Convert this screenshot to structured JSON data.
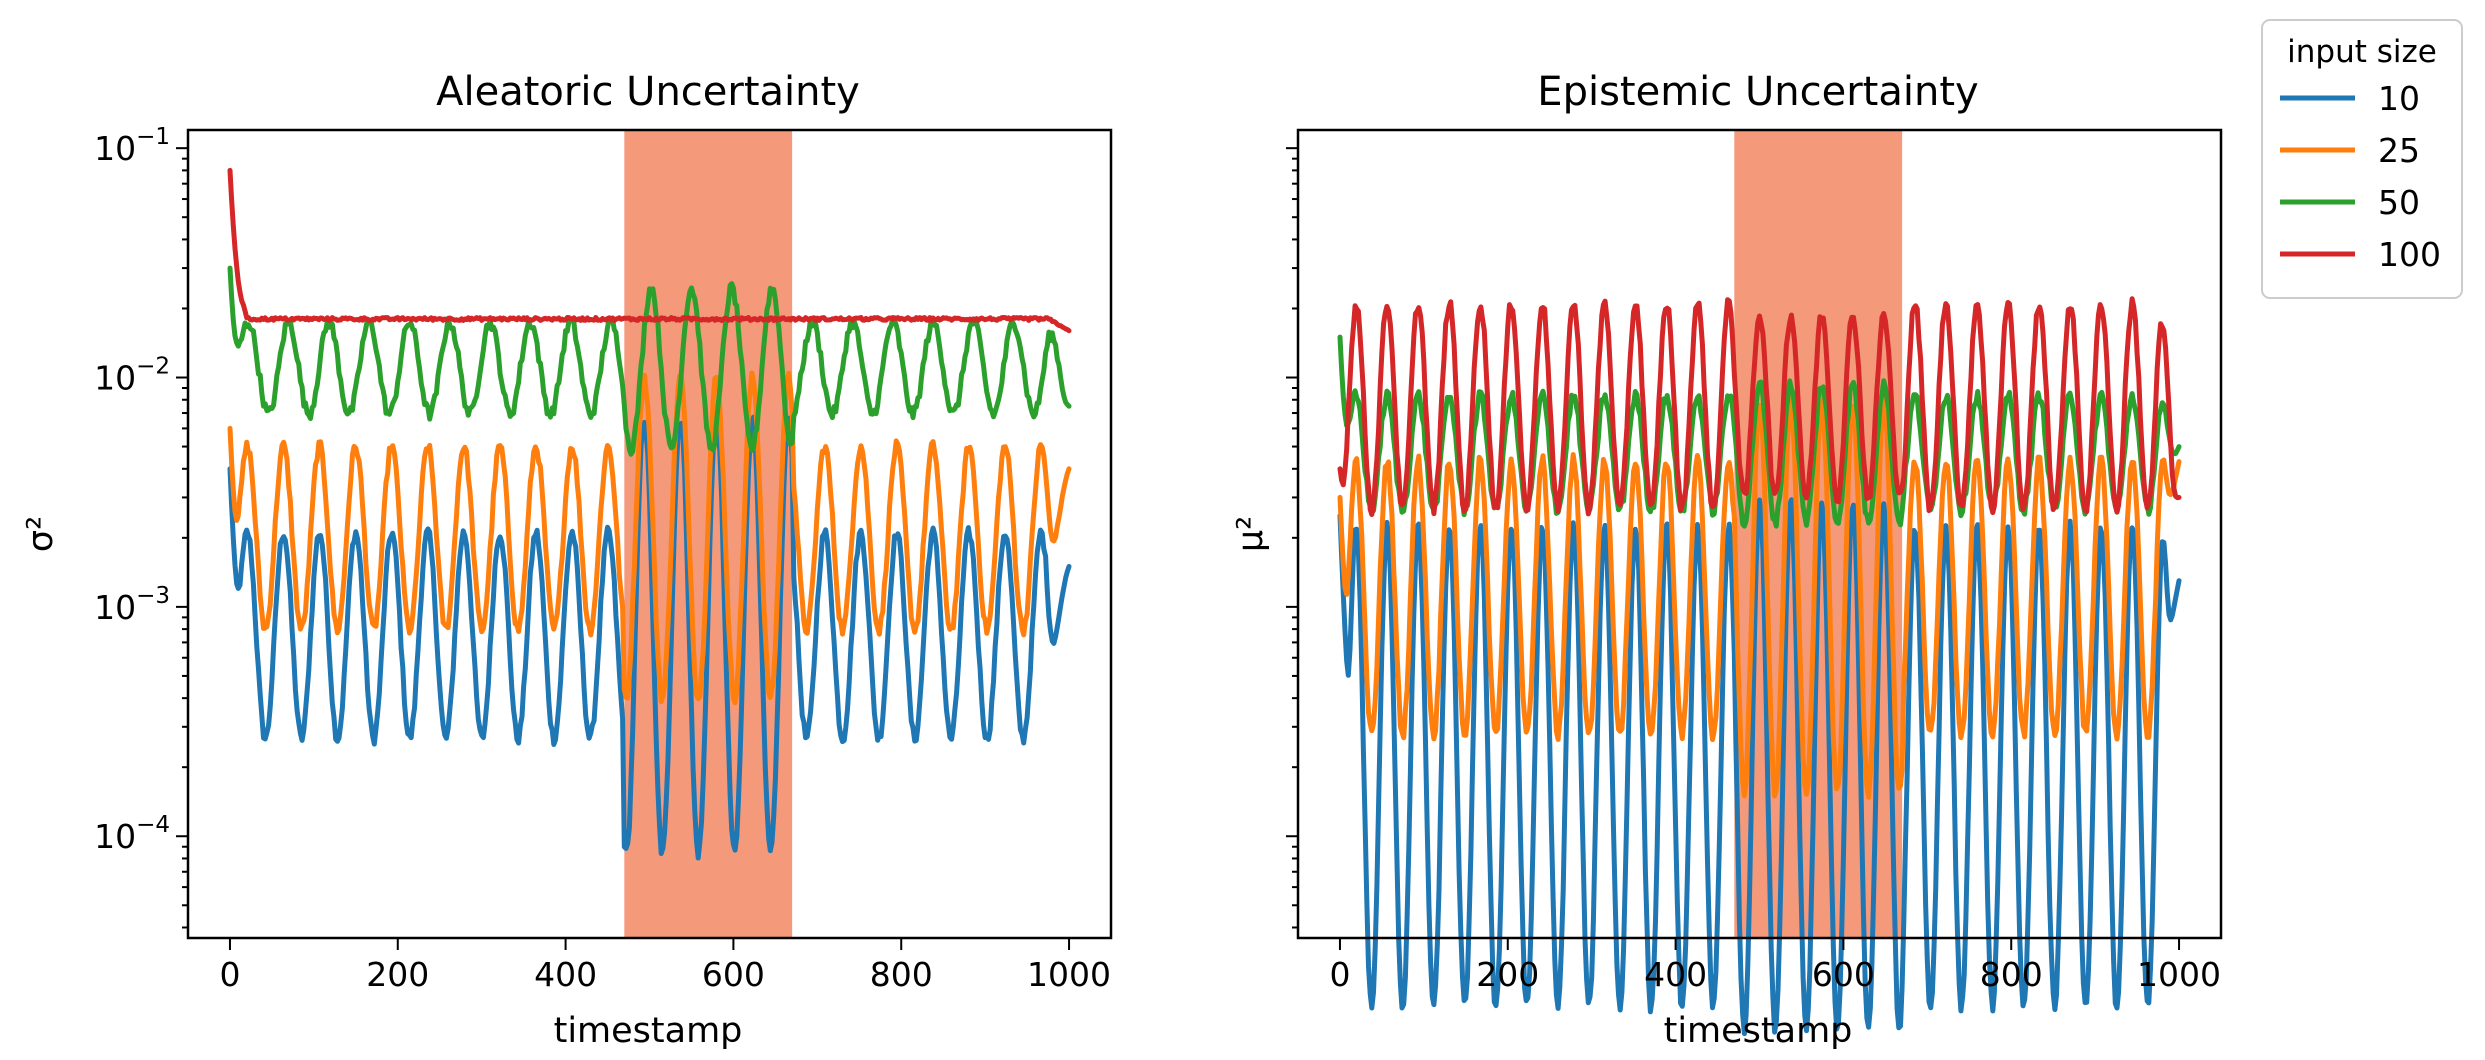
{
  "chart_data": [
    {
      "type": "line",
      "title": "Aleatoric Uncertainty",
      "xlabel": "timestamp",
      "ylabel": "σ²",
      "xlim": [
        -50,
        1050
      ],
      "ylim": [
        3.6e-05,
        0.12
      ],
      "yscale": "log",
      "x_ticks": [
        "0",
        "200",
        "400",
        "600",
        "800",
        "1000"
      ],
      "y_ticks": [
        {
          "base": "10",
          "exp": "−1",
          "value": 0.1
        },
        {
          "base": "10",
          "exp": "−2",
          "value": 0.01
        },
        {
          "base": "10",
          "exp": "−3",
          "value": 0.001
        },
        {
          "base": "10",
          "exp": "−4",
          "value": 0.0001
        }
      ],
      "highlight_span": [
        470,
        670
      ],
      "grid": false,
      "series": [
        {
          "name": "10",
          "color": "#1f77b4",
          "start": 0.004,
          "base": 0.00075,
          "amp": 0.45,
          "period": 43,
          "anomaly_amp": 0.95,
          "end": 0.0015
        },
        {
          "name": "25",
          "color": "#ff7f0e",
          "start": 0.006,
          "base": 0.002,
          "amp": 0.4,
          "period": 43,
          "anomaly_amp": 0.7,
          "end": 0.004
        },
        {
          "name": "50",
          "color": "#2ca02c",
          "start": 0.03,
          "base": 0.011,
          "amp": 0.2,
          "period": 48,
          "anomaly_amp": 0.35,
          "end": 0.0075
        },
        {
          "name": "100",
          "color": "#d62728",
          "start": 0.08,
          "base": 0.018,
          "amp": 0.0,
          "period": 48,
          "anomaly_amp": 0.0,
          "end": 0.016
        }
      ]
    },
    {
      "type": "line",
      "title": "Epistemic Uncertainty",
      "xlabel": "timestamp",
      "ylabel": "μ²",
      "xlim": [
        -50,
        1050
      ],
      "ylim": [
        3.6e-05,
        0.12
      ],
      "yscale": "log",
      "x_ticks": [
        "0",
        "200",
        "400",
        "600",
        "800",
        "1000"
      ],
      "highlight_span": [
        470,
        670
      ],
      "grid": false,
      "series": [
        {
          "name": "10",
          "color": "#1f77b4",
          "start": 0.0025,
          "base": 0.0002,
          "amp": 1.05,
          "period": 37,
          "anomaly_amp": 1.15,
          "end": 0.0013
        },
        {
          "name": "25",
          "color": "#ff7f0e",
          "start": 0.003,
          "base": 0.0011,
          "amp": 0.6,
          "period": 37,
          "anomaly_amp": 0.85,
          "end": 0.0043
        },
        {
          "name": "50",
          "color": "#2ca02c",
          "start": 0.015,
          "base": 0.0047,
          "amp": 0.25,
          "period": 37,
          "anomaly_amp": 0.3,
          "end": 0.005
        },
        {
          "name": "100",
          "color": "#d62728",
          "start": 0.004,
          "base": 0.0075,
          "amp": 0.45,
          "period": 37,
          "anomaly_amp": 0.4,
          "end": 0.003
        }
      ]
    }
  ],
  "legend": {
    "title": "input size",
    "position": "top-right",
    "entries": [
      {
        "label": "10",
        "color": "#1f77b4"
      },
      {
        "label": "25",
        "color": "#ff7f0e"
      },
      {
        "label": "50",
        "color": "#2ca02c"
      },
      {
        "label": "100",
        "color": "#d62728"
      }
    ]
  },
  "colors": {
    "highlight": "#f4997a"
  }
}
